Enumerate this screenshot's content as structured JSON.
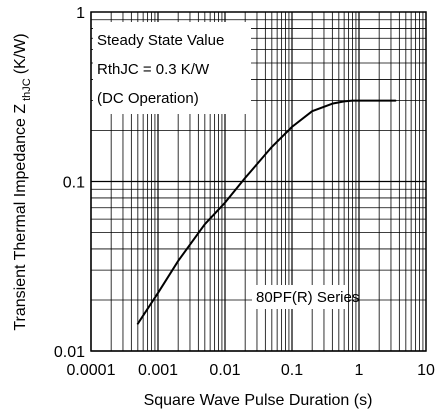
{
  "chart_data": {
    "type": "line",
    "xlabel": "Square Wave Pulse Duration (s)",
    "ylabel": "Transient Thermal Impedance Z",
    "ylabel_subscript": "thJC",
    "ylabel_unit": "(K/W)",
    "x_scale": "log",
    "y_scale": "log",
    "xlim": [
      0.0001,
      10
    ],
    "ylim": [
      0.01,
      1
    ],
    "grid": true,
    "x_ticks": [
      "0.0001",
      "0.001",
      "0.01",
      "0.1",
      "1",
      "10"
    ],
    "y_ticks": [
      "0.01",
      "0.1",
      "1"
    ],
    "annotations": {
      "steady_state_title": "Steady State Value",
      "rthjc": "RthJC = 0.3 K/W",
      "dc_operation": "(DC Operation)",
      "series_label": "80PF(R) Series"
    },
    "series": [
      {
        "x": [
          0.0005,
          0.001,
          0.002,
          0.005,
          0.01,
          0.02,
          0.05,
          0.1,
          0.2,
          0.4,
          0.6,
          0.8,
          1,
          2,
          3.5
        ],
        "y": [
          0.0145,
          0.022,
          0.034,
          0.056,
          0.075,
          0.105,
          0.16,
          0.21,
          0.26,
          0.288,
          0.297,
          0.3,
          0.3,
          0.3,
          0.3
        ]
      }
    ]
  }
}
